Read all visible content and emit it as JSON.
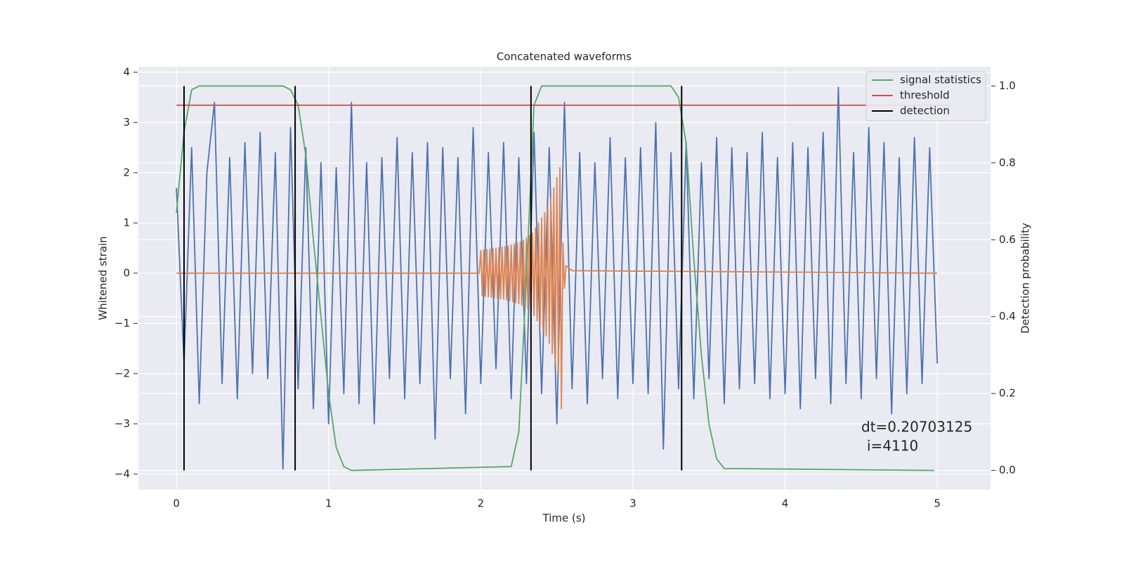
{
  "chart_data": {
    "type": "line",
    "title": "Concatenated waveforms",
    "x_label": "Time (s)",
    "y_label": "Whitened strain",
    "y2_label": "Detection probability",
    "xlim": [
      -0.25,
      5.35
    ],
    "ylim": [
      -4.31,
      4.11
    ],
    "y2lim": [
      -0.05,
      1.05
    ],
    "xticks": [
      0,
      1,
      2,
      3,
      4,
      5
    ],
    "yticks": [
      {
        "value": -4,
        "label": "−4"
      },
      {
        "value": -3,
        "label": "−3"
      },
      {
        "value": -2,
        "label": "−2"
      },
      {
        "value": -1,
        "label": "−1"
      },
      0,
      1,
      2,
      3,
      4
    ],
    "y2ticks": [
      {
        "value": 0,
        "label": "0.0"
      },
      0.2,
      0.4,
      0.6,
      0.8,
      {
        "value": 1,
        "label": "1.0"
      }
    ],
    "grid": true,
    "background": "#eaeaf2",
    "legend_position": "upper right",
    "series": [
      {
        "color": "#4c72b0",
        "x": [
          0,
          0.05,
          0.1,
          0.15,
          0.2,
          0.25,
          0.3,
          0.35,
          0.4,
          0.45,
          0.5,
          0.55,
          0.6,
          0.65,
          0.7,
          0.75,
          0.8,
          0.85,
          0.9,
          0.95,
          1,
          1.05,
          1.1,
          1.15,
          1.2,
          1.25,
          1.3,
          1.35,
          1.4,
          1.45,
          1.5,
          1.55,
          1.6,
          1.65,
          1.7,
          1.75,
          1.8,
          1.85,
          1.9,
          1.95,
          2,
          2.05,
          2.1,
          2.15,
          2.2,
          2.25,
          2.3,
          2.35,
          2.4,
          2.45,
          2.5,
          2.55,
          2.6,
          2.65,
          2.7,
          2.75,
          2.8,
          2.85,
          2.9,
          2.95,
          3,
          3.05,
          3.1,
          3.15,
          3.2,
          3.25,
          3.3,
          3.35,
          3.4,
          3.45,
          3.5,
          3.55,
          3.6,
          3.65,
          3.7,
          3.75,
          3.8,
          3.85,
          3.9,
          3.95,
          4,
          4.05,
          4.1,
          4.15,
          4.2,
          4.25,
          4.3,
          4.35,
          4.4,
          4.45,
          4.5,
          4.55,
          4.6,
          4.65,
          4.7,
          4.75,
          4.8,
          4.85,
          4.9,
          4.95,
          5
        ],
        "values": [
          1.7,
          -1.8,
          2.5,
          -2.6,
          2.0,
          3.4,
          -2.2,
          2.3,
          -2.5,
          2.6,
          -2.0,
          2.8,
          -2.1,
          2.4,
          -3.9,
          2.9,
          -2.3,
          2.5,
          -2.7,
          2.2,
          -3.0,
          2.1,
          -2.4,
          3.4,
          -2.6,
          2.2,
          -3.0,
          2.3,
          -2.1,
          2.7,
          -2.5,
          2.4,
          -2.2,
          2.6,
          -3.3,
          2.5,
          -2.1,
          2.3,
          -2.8,
          2.9,
          -2.2,
          2.4,
          -1.9,
          2.6,
          -2.5,
          2.3,
          -2.2,
          2.8,
          -2.4,
          2.5,
          -3.0,
          3.4,
          -2.3,
          2.4,
          -2.6,
          2.2,
          -2.1,
          2.7,
          -2.5,
          2.3,
          -2.2,
          2.5,
          -2.4,
          3.0,
          -3.5,
          2.4,
          -2.3,
          2.6,
          -2.5,
          2.2,
          -2.1,
          2.7,
          -2.6,
          2.5,
          -2.3,
          2.4,
          -2.2,
          2.8,
          -2.5,
          2.3,
          -2.4,
          2.6,
          -2.7,
          2.5,
          -2.1,
          2.8,
          -2.6,
          3.7,
          -2.2,
          2.4,
          -2.5,
          2.9,
          -2.1,
          2.6,
          -2.8,
          2.3,
          -2.4,
          2.7,
          -2.2,
          2.5,
          -1.8
        ]
      },
      {
        "color": "#dd8452",
        "x": [
          0,
          1.99,
          2.0,
          2.01,
          2.02,
          2.03,
          2.04,
          2.05,
          2.06,
          2.07,
          2.08,
          2.09,
          2.1,
          2.11,
          2.12,
          2.13,
          2.14,
          2.15,
          2.16,
          2.17,
          2.18,
          2.19,
          2.2,
          2.21,
          2.22,
          2.23,
          2.24,
          2.25,
          2.26,
          2.27,
          2.28,
          2.29,
          2.3,
          2.31,
          2.32,
          2.33,
          2.34,
          2.35,
          2.36,
          2.37,
          2.38,
          2.39,
          2.4,
          2.41,
          2.42,
          2.43,
          2.44,
          2.45,
          2.46,
          2.47,
          2.48,
          2.49,
          2.5,
          2.51,
          2.52,
          2.53,
          2.54,
          2.55,
          2.56,
          2.6,
          5
        ],
        "values": [
          0,
          0,
          0.45,
          -0.45,
          0.46,
          -0.46,
          0.47,
          -0.47,
          0.48,
          -0.48,
          0.49,
          -0.49,
          0.5,
          -0.5,
          0.51,
          -0.51,
          0.52,
          -0.52,
          0.53,
          -0.53,
          0.54,
          -0.55,
          0.56,
          -0.57,
          0.58,
          -0.59,
          0.6,
          -0.61,
          0.62,
          -0.64,
          0.66,
          -0.68,
          0.7,
          -0.72,
          0.75,
          -0.78,
          0.8,
          -0.85,
          0.9,
          -0.95,
          1.0,
          -1.05,
          1.1,
          -1.15,
          1.2,
          -1.25,
          1.3,
          -1.4,
          1.5,
          -1.6,
          1.7,
          -1.8,
          1.9,
          -2.0,
          2.1,
          -2.7,
          0.6,
          -0.3,
          0.15,
          0.05,
          0
        ]
      },
      {
        "name": "signal statistics",
        "color": "#55a868",
        "axis": "y2",
        "x": [
          0,
          0.05,
          0.1,
          0.15,
          0.7,
          0.75,
          0.8,
          0.85,
          0.9,
          0.95,
          1.0,
          1.05,
          1.1,
          1.15,
          2.2,
          2.25,
          2.3,
          2.35,
          2.4,
          3.25,
          3.3,
          3.35,
          3.4,
          3.45,
          3.5,
          3.55,
          3.6,
          4.98
        ],
        "values": [
          0.67,
          0.88,
          0.99,
          1.0,
          1.0,
          0.99,
          0.95,
          0.82,
          0.6,
          0.4,
          0.2,
          0.06,
          0.01,
          0.0,
          0.01,
          0.1,
          0.5,
          0.95,
          1.0,
          1.0,
          0.97,
          0.85,
          0.55,
          0.3,
          0.12,
          0.03,
          0.005,
          0.0
        ]
      },
      {
        "name": "threshold",
        "color": "#c44e52",
        "axis": "y2",
        "x": [
          0,
          5.1
        ],
        "values": [
          0.95,
          0.95
        ]
      }
    ],
    "detection": {
      "name": "detection",
      "color": "#000000",
      "x": [
        0.05,
        0.78,
        2.33,
        3.32
      ],
      "ymin": 0,
      "ymax": 1
    },
    "annotation": [
      "dt=0.20703125",
      "i=4110"
    ]
  }
}
